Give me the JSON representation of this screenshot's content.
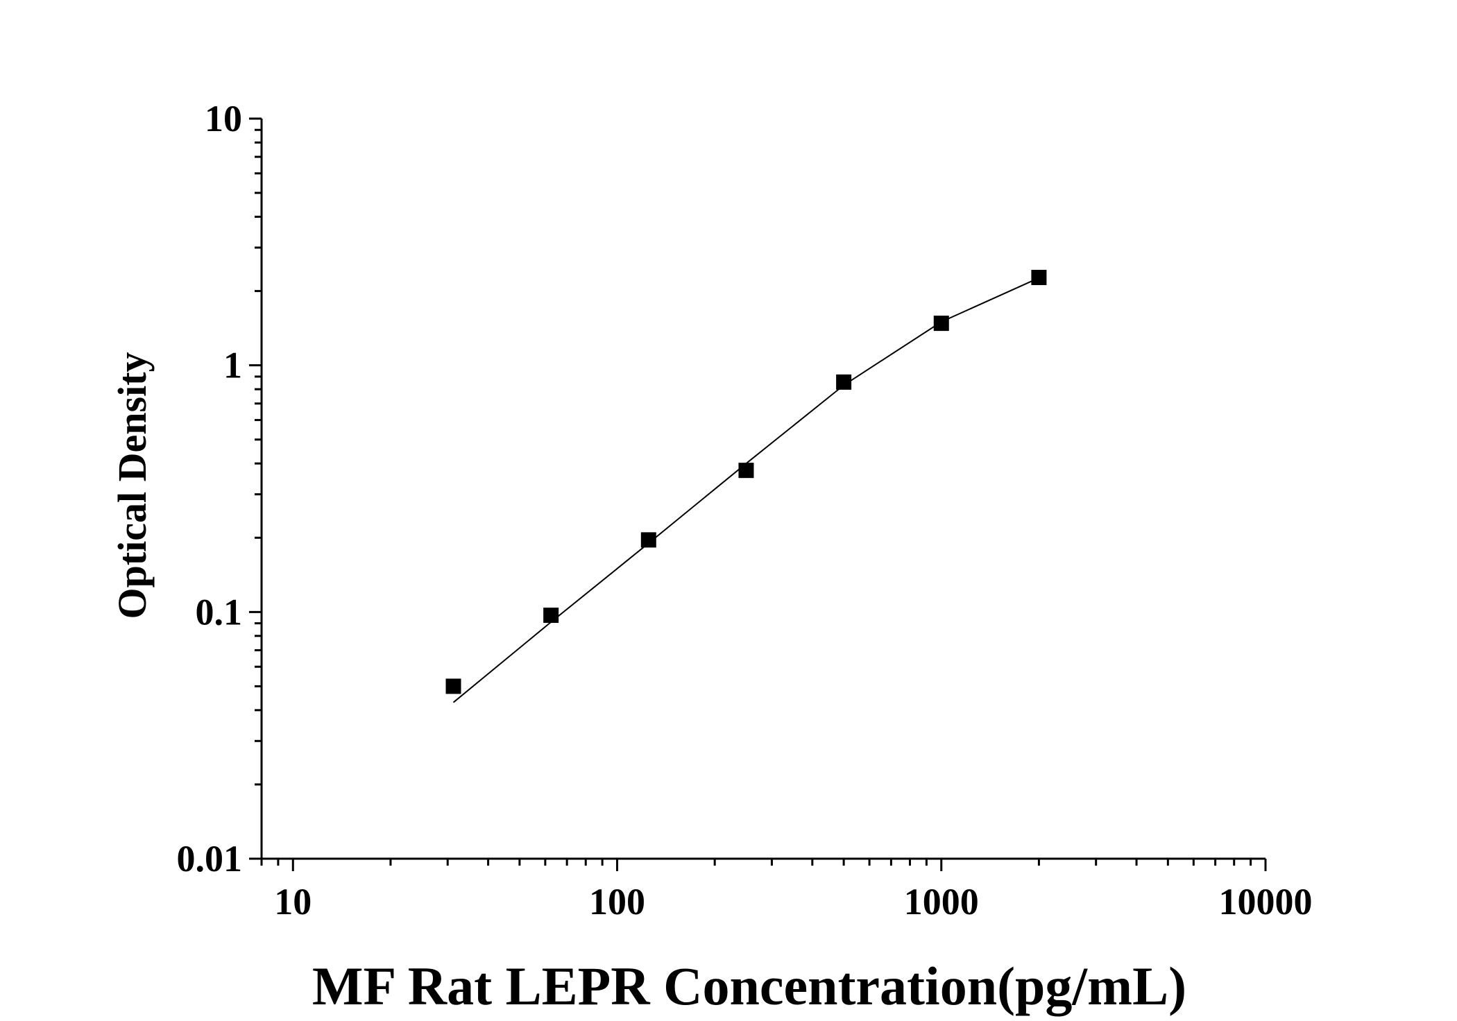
{
  "chart_data": {
    "type": "scatter",
    "xlabel": "MF Rat LEPR Concentration(pg/mL)",
    "ylabel": "Optical Density",
    "x_scale": "log",
    "y_scale": "log",
    "xlim": [
      8,
      10000
    ],
    "ylim": [
      0.01,
      10
    ],
    "x_ticks": [
      10,
      100,
      1000,
      10000
    ],
    "x_tick_labels": [
      "10",
      "100",
      "1000",
      "10000"
    ],
    "y_ticks": [
      0.01,
      0.1,
      1,
      10
    ],
    "y_tick_labels": [
      "0.01",
      "0.1",
      "1",
      "10"
    ],
    "grid": false,
    "points": [
      {
        "x": 31.25,
        "y": 0.05
      },
      {
        "x": 62.5,
        "y": 0.097
      },
      {
        "x": 125,
        "y": 0.196
      },
      {
        "x": 250,
        "y": 0.375
      },
      {
        "x": 500,
        "y": 0.855
      },
      {
        "x": 1000,
        "y": 1.48
      },
      {
        "x": 2000,
        "y": 2.27
      }
    ],
    "fit_curve": [
      {
        "x": 31.25,
        "y": 0.043
      },
      {
        "x": 62.5,
        "y": 0.091
      },
      {
        "x": 125,
        "y": 0.19
      },
      {
        "x": 250,
        "y": 0.4
      },
      {
        "x": 500,
        "y": 0.83
      },
      {
        "x": 1000,
        "y": 1.5
      },
      {
        "x": 2000,
        "y": 2.26
      }
    ],
    "marker_color": "#000000",
    "line_color": "#000000"
  }
}
